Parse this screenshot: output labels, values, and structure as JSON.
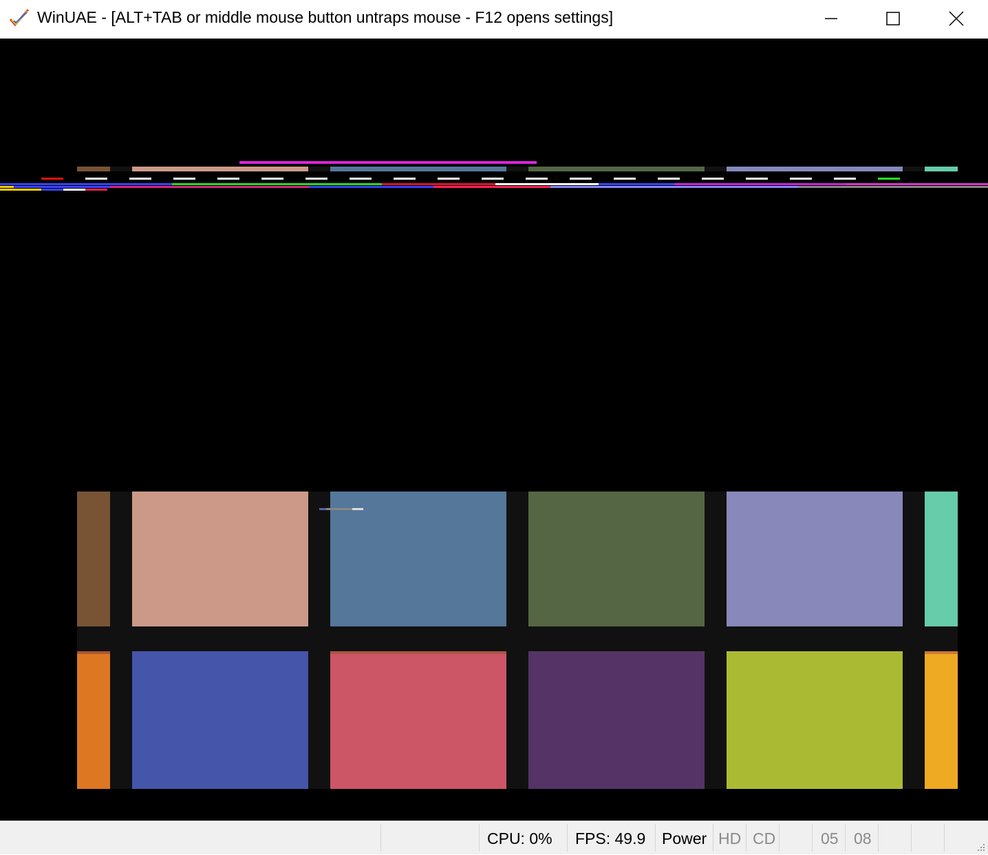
{
  "window": {
    "title": "WinUAE - [ALT+TAB or middle mouse button untraps mouse - F12 opens settings]",
    "icons": {
      "app": "checkmark-icon",
      "minimize": "minimize-icon",
      "maximize": "maximize-icon",
      "close": "close-icon"
    }
  },
  "screen": {
    "background": "#000000",
    "tile_colors_row1": [
      "#785435",
      "#cc9988",
      "#557799",
      "#556644",
      "#8888bb",
      "#66ccaa"
    ],
    "tile_colors_row2": [
      "#dd7722",
      "#4455aa",
      "#cc5566",
      "#553366",
      "#aabb33",
      "#eeaa22"
    ],
    "separator_color": "#111111"
  },
  "statusbar": {
    "cpu": "CPU: 0%",
    "fps": "FPS: 49.9",
    "power": "Power",
    "hd": "HD",
    "cd": "CD",
    "drive1": "05",
    "drive2": "08"
  }
}
